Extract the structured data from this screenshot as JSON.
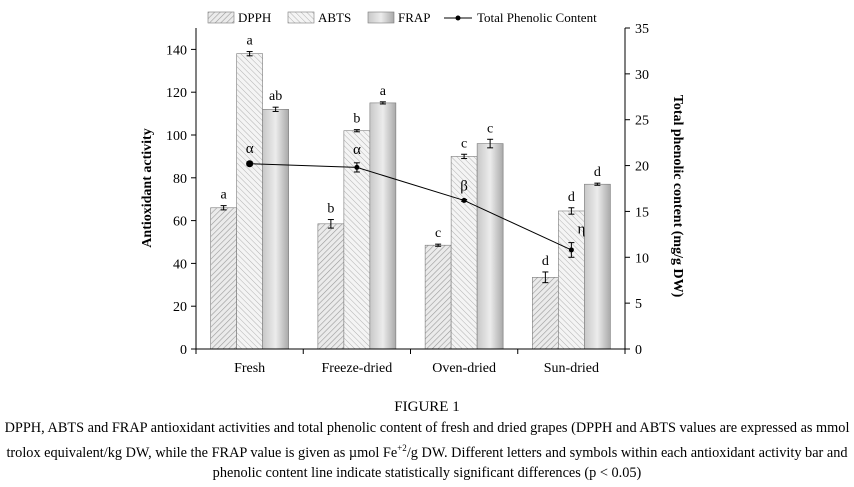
{
  "chart_data": {
    "type": "bar",
    "categories": [
      "Fresh",
      "Freeze-dried",
      "Oven-dried",
      "Sun-dried"
    ],
    "series": [
      {
        "name": "DPPH",
        "values": [
          66,
          58.5,
          48.5,
          33.5
        ],
        "errors": [
          1,
          2,
          0.5,
          2.5
        ],
        "letters": [
          "a",
          "b",
          "c",
          "d"
        ],
        "pattern": "hatch",
        "color": "#cfcfcf"
      },
      {
        "name": "ABTS",
        "values": [
          138,
          102,
          90,
          64.5
        ],
        "errors": [
          1,
          0.5,
          1,
          1.5
        ],
        "letters": [
          "a",
          "b",
          "c",
          "d"
        ],
        "pattern": "hatch",
        "color": "#e2e2e2"
      },
      {
        "name": "FRAP",
        "values": [
          112,
          115,
          96,
          77
        ],
        "errors": [
          1,
          0.5,
          2,
          0.5
        ],
        "letters": [
          "ab",
          "a",
          "c",
          "d"
        ],
        "pattern": "solid",
        "color": "#b5b5b5"
      }
    ],
    "line_series": {
      "name": "Total Phenolic Content",
      "axis": "right",
      "values": [
        20.2,
        19.8,
        16.2,
        10.8
      ],
      "errors": [
        0.2,
        0.5,
        0.1,
        0.8
      ],
      "labels": [
        "α",
        "α",
        "β",
        "η"
      ]
    },
    "ylabel": "Antioxidant activity",
    "y2label": "Total phenolic content (mg/g DW)",
    "ylim": [
      0,
      150
    ],
    "y2lim": [
      0,
      35
    ],
    "yticks": [
      0,
      20,
      40,
      60,
      80,
      100,
      120,
      140
    ],
    "y2ticks": [
      0,
      5,
      10,
      15,
      20,
      25,
      30,
      35
    ],
    "legend_position": "top"
  },
  "caption": {
    "title": "FIGURE 1",
    "text_before_sup": "DPPH, ABTS and FRAP antioxidant activities and total phenolic content of fresh and dried grapes (DPPH and ABTS values are expressed as mmol trolox equivalent/kg DW, while the FRAP value is given as µmol Fe",
    "sup": "+2",
    "text_after_sup": "/g DW. Different letters and symbols within each antioxidant activity bar and phenolic content line indicate statistically significant differences (p < 0.05)"
  }
}
